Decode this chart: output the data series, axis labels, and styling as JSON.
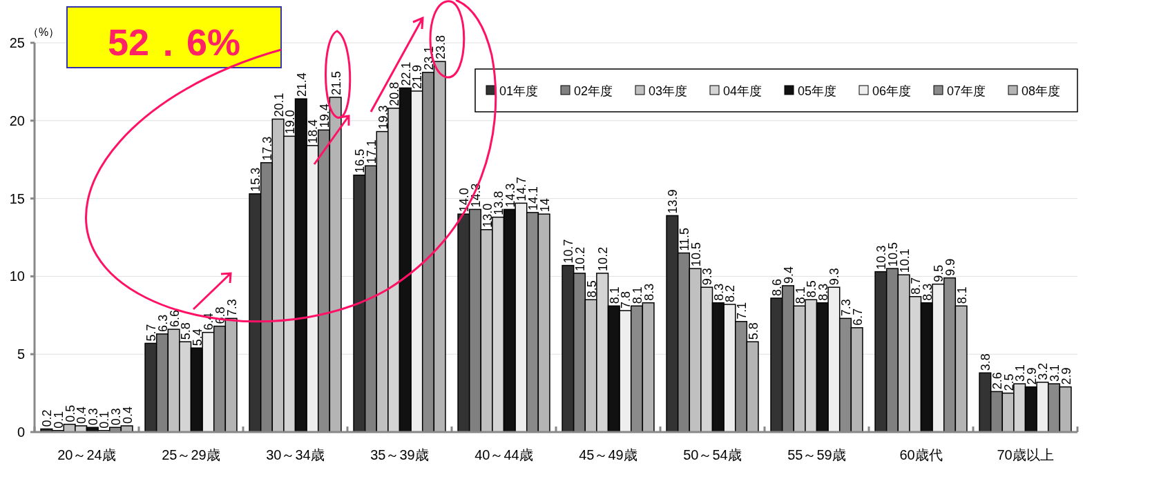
{
  "chart_data": {
    "type": "bar",
    "ylabel": "（%）",
    "categories": [
      "20～24歳",
      "25～29歳",
      "30～34歳",
      "35～39歳",
      "40～44歳",
      "45～49歳",
      "50～54歳",
      "55～59歳",
      "60歳代",
      "70歳以上"
    ],
    "ylim": [
      0,
      25
    ],
    "yticks": [
      0,
      5,
      10,
      15,
      20,
      25
    ],
    "grid": "y",
    "legend": "top right",
    "series": [
      {
        "name": "01年度",
        "color": "#333333",
        "values": [
          0.2,
          5.7,
          15.3,
          16.5,
          14.0,
          10.7,
          13.9,
          8.6,
          10.3,
          3.8
        ],
        "value_labels": [
          "0.2",
          "5.7",
          "15.3",
          "16.5",
          "14.0",
          "10.7",
          "13.9",
          "8.6",
          "10.3",
          "3.8"
        ]
      },
      {
        "name": "02年度",
        "color": "#808080",
        "values": [
          0.1,
          6.3,
          17.3,
          17.1,
          14.3,
          10.2,
          11.5,
          9.4,
          10.5,
          2.6
        ],
        "value_labels": [
          "0.1",
          "6.3",
          "17.3",
          "17.1",
          "14.3",
          "10.2",
          "11.5",
          "9.4",
          "10.5",
          "2.6"
        ]
      },
      {
        "name": "03年度",
        "color": "#c0c0c0",
        "values": [
          0.5,
          6.6,
          20.1,
          19.3,
          13.0,
          8.5,
          10.5,
          8.1,
          10.1,
          2.5
        ],
        "value_labels": [
          "0.5",
          "6.6",
          "20.1",
          "19.3",
          "13.0",
          "8.5",
          "10.5",
          "8.1",
          "10.1",
          "2.5"
        ]
      },
      {
        "name": "04年度",
        "color": "#d4d4d4",
        "values": [
          0.4,
          5.8,
          19.0,
          20.8,
          13.8,
          10.2,
          9.3,
          8.5,
          8.7,
          3.1
        ],
        "value_labels": [
          "0.4",
          "5.8",
          "19.0",
          "20.8",
          "13.8",
          "10.2",
          "9.3",
          "8.5",
          "8.7",
          "3.1"
        ]
      },
      {
        "name": "05年度",
        "color": "#111111",
        "values": [
          0.3,
          5.4,
          21.4,
          22.1,
          14.3,
          8.1,
          8.3,
          8.3,
          8.3,
          2.9
        ],
        "value_labels": [
          "0.3",
          "5.4",
          "21.4",
          "22.1",
          "14.3",
          "8.1",
          "8.3",
          "8.3",
          "8.3",
          "2.9"
        ]
      },
      {
        "name": "06年度",
        "color": "#eeeeee",
        "values": [
          0.1,
          6.4,
          18.4,
          21.9,
          14.7,
          7.8,
          8.2,
          9.3,
          9.5,
          3.2
        ],
        "value_labels": [
          "0.1",
          "6.4",
          "18.4",
          "21.9",
          "14.7",
          "7.8",
          "8.2",
          "9.3",
          "9.5",
          "3.2"
        ]
      },
      {
        "name": "07年度",
        "color": "#8a8a8a",
        "values": [
          0.3,
          6.8,
          19.4,
          23.1,
          14.1,
          8.1,
          7.1,
          7.3,
          9.9,
          3.1
        ],
        "value_labels": [
          "0.3",
          "6.8",
          "19.4",
          "23.1",
          "14.1",
          "8.1",
          "7.1",
          "7.3",
          "9.9",
          "3.1"
        ]
      },
      {
        "name": "08年度",
        "color": "#b4b4b4",
        "values": [
          0.4,
          7.3,
          21.5,
          23.8,
          14,
          8.3,
          5.8,
          6.7,
          8.1,
          2.9
        ],
        "value_labels": [
          "0.4",
          "7.3",
          "21.5",
          "23.8",
          "14",
          "8.3",
          "5.8",
          "6.7",
          "8.1",
          "2.9"
        ]
      }
    ],
    "annotations": [
      "52．6%"
    ]
  }
}
